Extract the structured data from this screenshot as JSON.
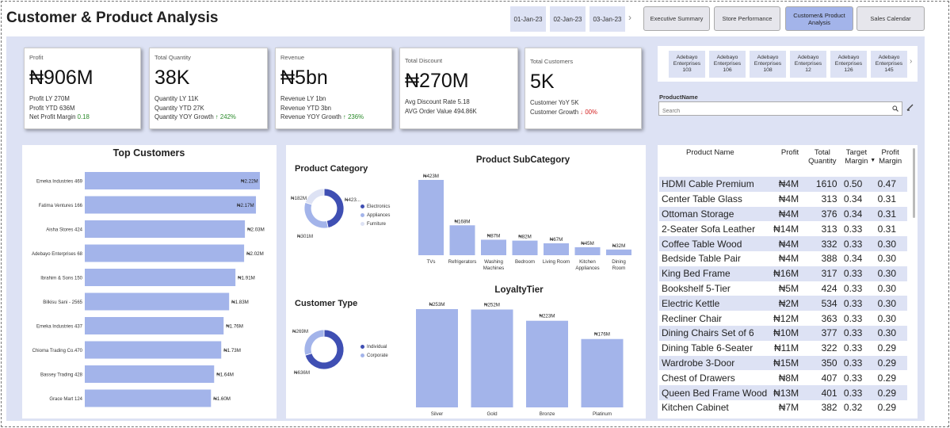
{
  "header": {
    "title": "Customer & Product Analysis",
    "dates": [
      "01-Jan-23",
      "02-Jan-23",
      "03-Jan-23"
    ],
    "nav": [
      "Executive Summary",
      "Store Performance",
      "Customer& Product Analysis",
      "Sales Calendar"
    ]
  },
  "kpis": [
    {
      "label": "Profit",
      "value": "₦906M",
      "l1": "Profit LY 270M",
      "l2": "Profit YTD 636M",
      "l3": "Net Profit Margin",
      "l3v": "0.18"
    },
    {
      "label": "Total Quantity",
      "value": "38K",
      "l1": "Quantity LY 11K",
      "l2": "Quantity YTD 27K",
      "l3": "Quantity YOY Growth",
      "l3v": "↑ 242%"
    },
    {
      "label": "Revenue",
      "value": "₦5bn",
      "l1": "Revenue LY 1bn",
      "l2": "Revenue YTD 3bn",
      "l3": "Revenue YOY Growth",
      "l3v": "↑ 236%"
    },
    {
      "label": "Total Discount",
      "value": "₦270M",
      "l1": "Avg Discount Rate 5.18",
      "l2": "AVG Order Value 494.86K"
    },
    {
      "label": "Total Customers",
      "value": "5K",
      "l1": "Customer YoY 5K",
      "l2": "Customer Growth",
      "l2v": "↓ 00%"
    }
  ],
  "stores": [
    {
      "a": "Adebayo",
      "b": "Enterprises",
      "c": "103"
    },
    {
      "a": "Adebayo",
      "b": "Enterprises",
      "c": "106"
    },
    {
      "a": "Adebayo",
      "b": "Enterprises",
      "c": "108"
    },
    {
      "a": "Adebayo",
      "b": "Enterprises",
      "c": "12"
    },
    {
      "a": "Adebayo",
      "b": "Enterprises",
      "c": "126"
    },
    {
      "a": "Adebayo",
      "b": "Enterprises",
      "c": "145"
    }
  ],
  "productSearch": {
    "label": "ProductName",
    "placeholder": "Search"
  },
  "chart_data": [
    {
      "type": "bar",
      "title": "Top Customers",
      "categories": [
        "Emeka Industries 469",
        "Fatima Ventures 166",
        "Aisha Stores 424",
        "Adebayo Enterprises 68",
        "Ibrahim & Sons 150",
        "Bilkisu Sani - 2565",
        "Emeka Industries 437",
        "Chioma Trading Co.470",
        "Bassey Trading 428",
        "Grace Mart 124"
      ],
      "values": [
        2.22,
        2.17,
        2.03,
        2.02,
        1.91,
        1.83,
        1.76,
        1.73,
        1.64,
        1.6
      ],
      "labels": [
        "₦2.22M",
        "₦2.17M",
        "₦2.03M",
        "₦2.02M",
        "₦1.91M",
        "₦1.83M",
        "₦1.76M",
        "₦1.73M",
        "₦1.64M",
        "₦1.60M"
      ],
      "unit": "₦M"
    },
    {
      "type": "pie",
      "title": "Product Category",
      "categories": [
        "Electronics",
        "Appliances",
        "Furniture"
      ],
      "values": [
        423,
        301,
        182
      ],
      "labels": [
        "₦423...",
        "₦301M",
        "₦182M"
      ]
    },
    {
      "type": "bar",
      "title": "Product SubCategory",
      "categories": [
        "TVs",
        "Refrigerators",
        "Washing Machines",
        "Bedroom",
        "Living Room",
        "Kitchen Appliances",
        "Dining Room"
      ],
      "category_lines": [
        [
          "TVs"
        ],
        [
          "Refrigerators"
        ],
        [
          "Washing",
          "Machines"
        ],
        [
          "Bedroom"
        ],
        [
          "Living Room"
        ],
        [
          "Kitchen",
          "Appliances"
        ],
        [
          "Dining",
          "Room"
        ]
      ],
      "values": [
        423,
        168,
        87,
        82,
        67,
        45,
        32
      ],
      "labels": [
        "₦423M",
        "₦168M",
        "₦87M",
        "₦82M",
        "₦67M",
        "₦45M",
        "₦32M"
      ]
    },
    {
      "type": "pie",
      "title": "Customer Type",
      "categories": [
        "Individual",
        "Corporate"
      ],
      "values": [
        636,
        269
      ],
      "labels": [
        "₦636M",
        "₦269M"
      ]
    },
    {
      "type": "bar",
      "title": "LoyaltyTier",
      "categories": [
        "Silver",
        "Gold",
        "Bronze",
        "Platinum"
      ],
      "values": [
        253,
        252,
        223,
        176
      ],
      "labels": [
        "₦253M",
        "₦252M",
        "₦223M",
        "₦176M"
      ]
    }
  ],
  "table": {
    "headers": [
      "Product Name",
      "Profit",
      "Total",
      "Quantity",
      "Target",
      "Margin",
      "Profit",
      "Margin"
    ],
    "rows": [
      [
        "HDMI Cable Premium",
        "₦4M",
        "1610",
        "0.50",
        "0.47"
      ],
      [
        "Center Table Glass",
        "₦4M",
        "313",
        "0.34",
        "0.31"
      ],
      [
        "Ottoman Storage",
        "₦4M",
        "376",
        "0.34",
        "0.31"
      ],
      [
        "2-Seater Sofa Leather",
        "₦14M",
        "313",
        "0.33",
        "0.31"
      ],
      [
        "Coffee Table Wood",
        "₦4M",
        "332",
        "0.33",
        "0.30"
      ],
      [
        "Bedside Table Pair",
        "₦4M",
        "388",
        "0.34",
        "0.30"
      ],
      [
        "King Bed Frame",
        "₦16M",
        "317",
        "0.33",
        "0.30"
      ],
      [
        "Bookshelf 5-Tier",
        "₦5M",
        "424",
        "0.33",
        "0.30"
      ],
      [
        "Electric Kettle",
        "₦2M",
        "534",
        "0.33",
        "0.30"
      ],
      [
        "Recliner Chair",
        "₦12M",
        "363",
        "0.33",
        "0.30"
      ],
      [
        "Dining Chairs Set of 6",
        "₦10M",
        "377",
        "0.33",
        "0.30"
      ],
      [
        "Dining Table 6-Seater",
        "₦11M",
        "322",
        "0.33",
        "0.29"
      ],
      [
        "Wardrobe 3-Door",
        "₦15M",
        "350",
        "0.33",
        "0.29"
      ],
      [
        "Chest of Drawers",
        "₦8M",
        "407",
        "0.33",
        "0.29"
      ],
      [
        "Queen Bed Frame Wood",
        "₦13M",
        "401",
        "0.33",
        "0.29"
      ],
      [
        "Kitchen Cabinet",
        "₦7M",
        "382",
        "0.32",
        "0.29"
      ]
    ]
  },
  "colors": {
    "accent": "#a3b4ea",
    "dark": "#3f4fb3",
    "light": "#dde2f4",
    "up": "#2a8a2a",
    "down": "#d42020"
  }
}
